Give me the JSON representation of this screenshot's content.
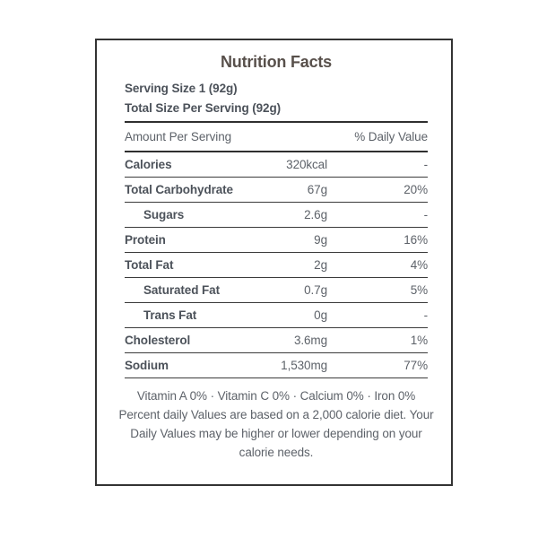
{
  "colors": {
    "border": "#333333",
    "title_text": "#58504b",
    "label_text": "#4c525a",
    "body_text": "#5d6269",
    "row_line": "#3b3b3b",
    "thick_line": "#2f2f2f",
    "background": "#ffffff"
  },
  "card": {
    "title": "Nutrition Facts",
    "serving": {
      "size_line": "Serving Size 1 (92g)",
      "total_line": "Total Size Per Serving (92g)"
    },
    "table": {
      "amount_header": "Amount Per Serving",
      "daily_value_header": "% Daily Value",
      "rows": [
        {
          "label": "Calories",
          "amount": "320kcal",
          "daily_value": "-",
          "indent": false
        },
        {
          "label": "Total Carbohydrate",
          "amount": "67g",
          "daily_value": "20%",
          "indent": false
        },
        {
          "label": "Sugars",
          "amount": "2.6g",
          "daily_value": "-",
          "indent": true
        },
        {
          "label": "Protein",
          "amount": "9g",
          "daily_value": "16%",
          "indent": false
        },
        {
          "label": "Total Fat",
          "amount": "2g",
          "daily_value": "4%",
          "indent": false
        },
        {
          "label": "Saturated Fat",
          "amount": "0.7g",
          "daily_value": "5%",
          "indent": true
        },
        {
          "label": "Trans Fat",
          "amount": "0g",
          "daily_value": "-",
          "indent": true
        },
        {
          "label": "Cholesterol",
          "amount": "3.6mg",
          "daily_value": "1%",
          "indent": false
        },
        {
          "label": "Sodium",
          "amount": "1,530mg",
          "daily_value": "77%",
          "indent": false
        }
      ]
    },
    "footer": {
      "micronutrients": "Vitamin A 0% · Vitamin C 0% · Calcium 0% · Iron 0%",
      "note_lines": [
        "Percent daily Values are based on a 2,000 calorie diet. Your",
        "Daily Values may be higher or lower depending on your",
        "calorie needs."
      ]
    }
  }
}
